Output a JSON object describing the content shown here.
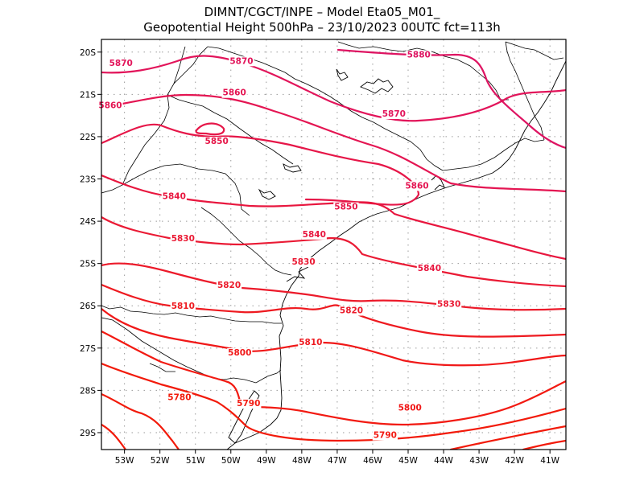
{
  "title": {
    "line1": "DIMNT/CGCT/INPE –  Model Eta05_M01_",
    "line2": "Geopotential Height 500hPa –  23/10/2023 00UTC fct=113h"
  },
  "map": {
    "lon_range": [
      -53.65,
      -40.55
    ],
    "lat_range": [
      -29.4,
      -19.7
    ],
    "lon_ticks": [
      {
        "value": -53,
        "label": "53W"
      },
      {
        "value": -52,
        "label": "52W"
      },
      {
        "value": -51,
        "label": "51W"
      },
      {
        "value": -50,
        "label": "50W"
      },
      {
        "value": -49,
        "label": "49W"
      },
      {
        "value": -48,
        "label": "48W"
      },
      {
        "value": -47,
        "label": "47W"
      },
      {
        "value": -46,
        "label": "46W"
      },
      {
        "value": -45,
        "label": "45W"
      },
      {
        "value": -44,
        "label": "44W"
      },
      {
        "value": -43,
        "label": "43W"
      },
      {
        "value": -42,
        "label": "42W"
      },
      {
        "value": -41,
        "label": "41W"
      }
    ],
    "lat_ticks": [
      {
        "value": -20,
        "label": "20S"
      },
      {
        "value": -21,
        "label": "21S"
      },
      {
        "value": -22,
        "label": "22S"
      },
      {
        "value": -23,
        "label": "23S"
      },
      {
        "value": -24,
        "label": "24S"
      },
      {
        "value": -25,
        "label": "25S"
      },
      {
        "value": -26,
        "label": "26S"
      },
      {
        "value": -27,
        "label": "27S"
      },
      {
        "value": -28,
        "label": "28S"
      },
      {
        "value": -29,
        "label": "29S"
      }
    ],
    "grid": "dotted",
    "contour_interval_m": 10,
    "contour_colors": {
      "5780": "#f21a0a",
      "5790": "#f21a12",
      "5800": "#f01818",
      "5810": "#ee1a20",
      "5820": "#ec1a2a",
      "5830": "#ea1a34",
      "5840": "#e8163e",
      "5850": "#e61648",
      "5860": "#e41552",
      "5870": "#e2145a",
      "5880": "#de1462"
    },
    "contour_labels": [
      {
        "text": "5870",
        "lon": -53.1,
        "lat": -20.25
      },
      {
        "text": "5870",
        "lon": -49.7,
        "lat": -20.2
      },
      {
        "text": "5880",
        "lon": -44.7,
        "lat": -20.05
      },
      {
        "text": "5860",
        "lon": -53.4,
        "lat": -21.25
      },
      {
        "text": "5860",
        "lon": -49.9,
        "lat": -20.95
      },
      {
        "text": "5870",
        "lon": -45.4,
        "lat": -21.45
      },
      {
        "text": "5850",
        "lon": -50.4,
        "lat": -22.1
      },
      {
        "text": "5860",
        "lon": -44.75,
        "lat": -23.15
      },
      {
        "text": "5840",
        "lon": -51.6,
        "lat": -23.4
      },
      {
        "text": "5850",
        "lon": -46.75,
        "lat": -23.65
      },
      {
        "text": "5830",
        "lon": -51.35,
        "lat": -24.4
      },
      {
        "text": "5840",
        "lon": -47.65,
        "lat": -24.3
      },
      {
        "text": "5830",
        "lon": -47.95,
        "lat": -24.95
      },
      {
        "text": "5840",
        "lon": -44.4,
        "lat": -25.1
      },
      {
        "text": "5820",
        "lon": -50.05,
        "lat": -25.5
      },
      {
        "text": "5810",
        "lon": -51.35,
        "lat": -26.0
      },
      {
        "text": "5820",
        "lon": -46.6,
        "lat": -26.1
      },
      {
        "text": "5830",
        "lon": -43.85,
        "lat": -25.95
      },
      {
        "text": "5810",
        "lon": -47.75,
        "lat": -26.85
      },
      {
        "text": "5800",
        "lon": -49.75,
        "lat": -27.1
      },
      {
        "text": "5780",
        "lon": -51.45,
        "lat": -28.15
      },
      {
        "text": "5790",
        "lon": -49.5,
        "lat": -28.3
      },
      {
        "text": "5800",
        "lon": -44.95,
        "lat": -28.4
      },
      {
        "text": "5790",
        "lon": -45.65,
        "lat": -29.05
      }
    ]
  }
}
